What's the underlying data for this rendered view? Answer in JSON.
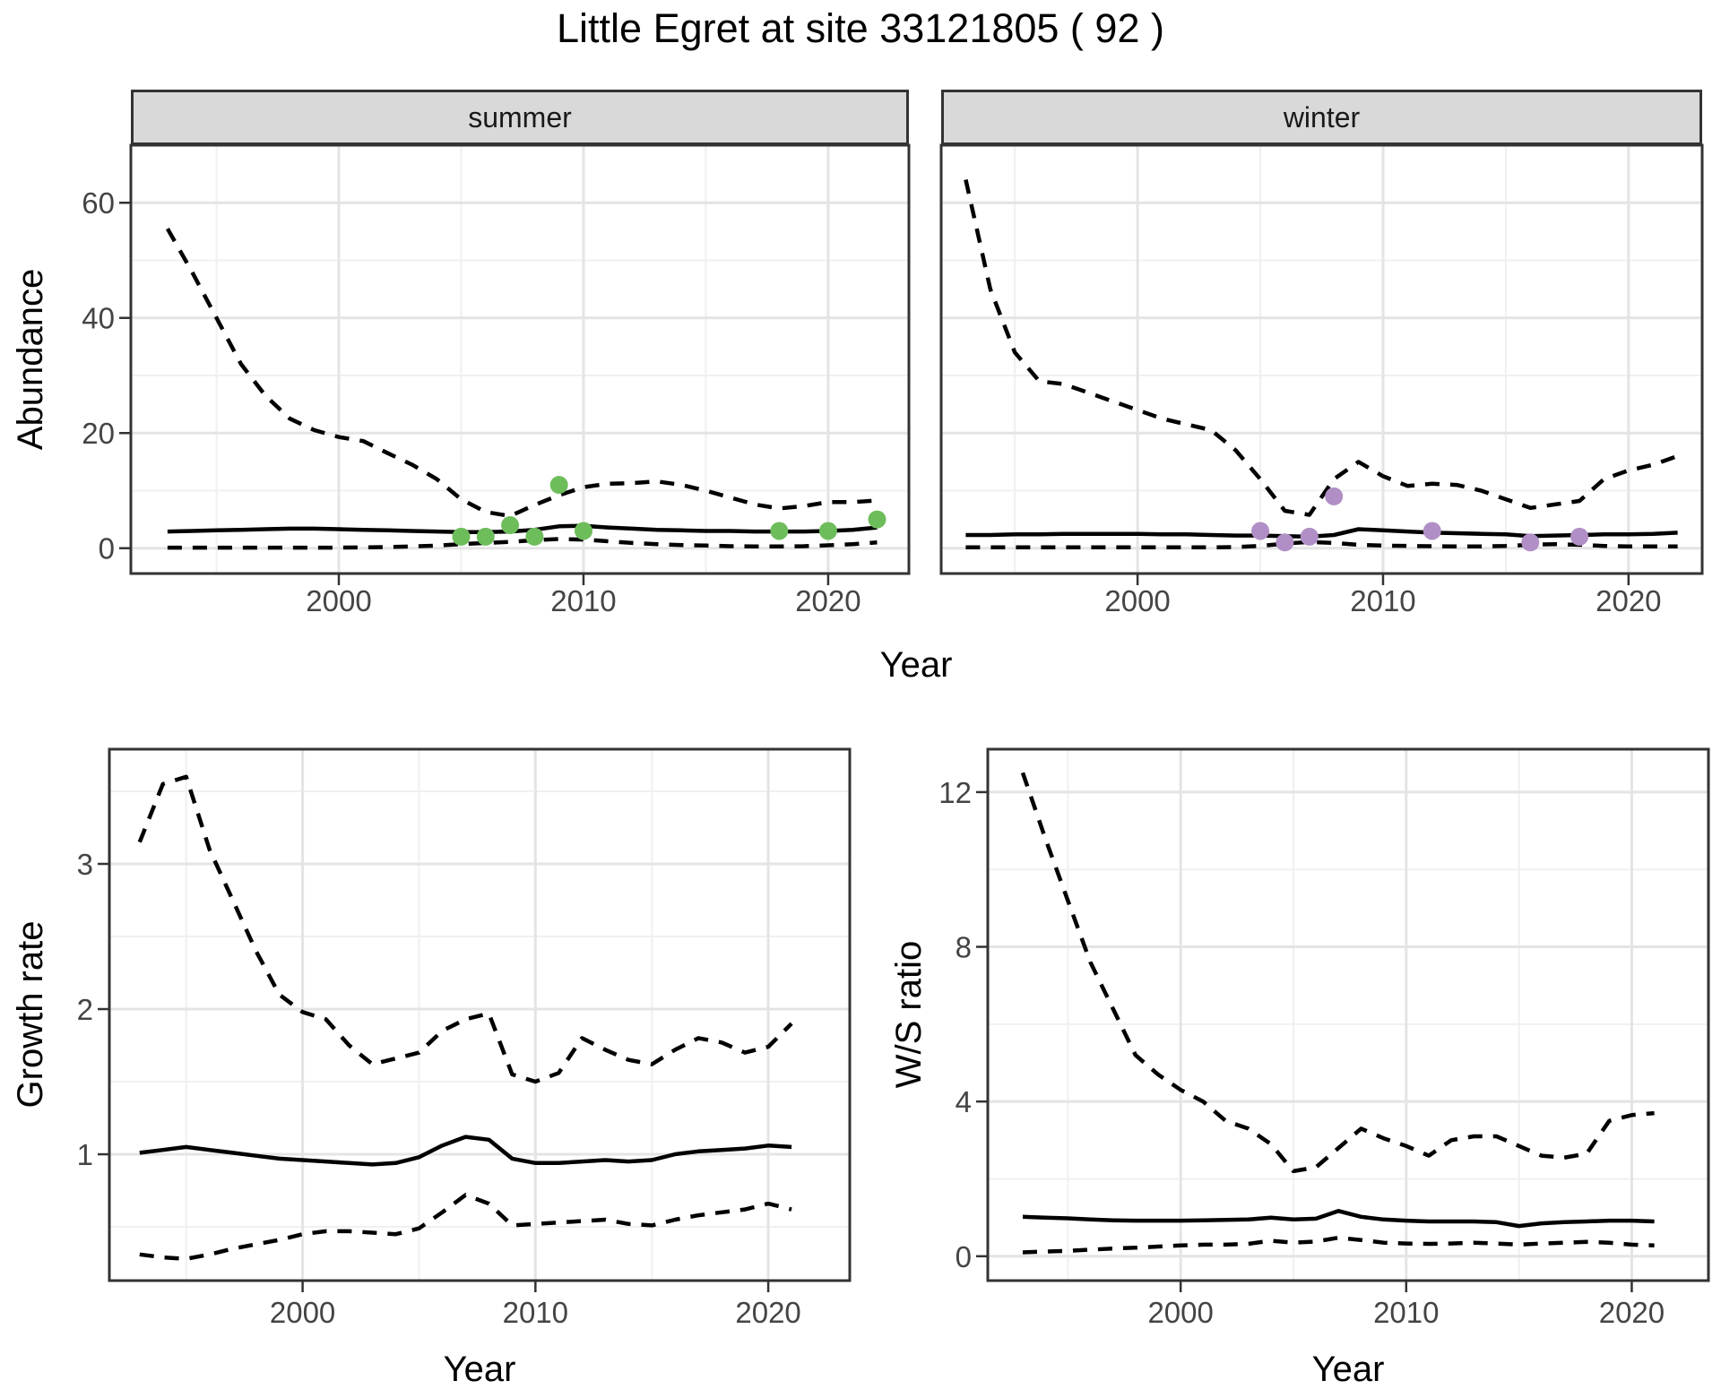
{
  "title": "Little Egret at site 33121805 ( 92 )",
  "axis_titles": {
    "year": "Year",
    "abundance": "Abundance",
    "growth_rate": "Growth rate",
    "ws_ratio": "W/S ratio"
  },
  "colors": {
    "summer_points": "#6dbd5b",
    "winter_points": "#b18fc6",
    "line": "#000000",
    "strip_fill": "#d9d9d9",
    "panel_border": "#333333",
    "grid_major": "#e4e4e4",
    "grid_minor": "#f0f0f0",
    "tick_text": "#444444"
  },
  "chart_data": [
    {
      "id": "abundance_summer",
      "type": "line",
      "facet_label": "summer",
      "xlabel": "Year",
      "ylabel": "Abundance",
      "xlim": [
        1991.5,
        2023.3
      ],
      "ylim": [
        -4.4,
        70
      ],
      "x_ticks": {
        "values": [
          2000,
          2010,
          2020
        ],
        "labels": [
          "2000",
          "2010",
          "2020"
        ]
      },
      "y_ticks": {
        "values": [
          0,
          20,
          40,
          60
        ],
        "labels": [
          "0",
          "20",
          "40",
          "60"
        ]
      },
      "x_minor": [
        1995,
        2005,
        2015
      ],
      "y_minor": [
        10,
        30,
        50
      ],
      "x": [
        1993,
        1994,
        1995,
        1996,
        1997,
        1998,
        1999,
        2000,
        2001,
        2002,
        2003,
        2004,
        2005,
        2006,
        2007,
        2008,
        2009,
        2010,
        2011,
        2012,
        2013,
        2014,
        2015,
        2016,
        2017,
        2018,
        2019,
        2020,
        2021,
        2022
      ],
      "series": [
        {
          "name": "upper-ci",
          "style": "dashed",
          "y": [
            55.5,
            48,
            40,
            32,
            26.5,
            22.5,
            20.5,
            19.3,
            18.6,
            16.5,
            14.5,
            12,
            8.5,
            6.3,
            5.6,
            7.5,
            9.2,
            10.6,
            11.2,
            11.3,
            11.6,
            11,
            10,
            8.8,
            7.6,
            6.9,
            7.3,
            8,
            8,
            8.3
          ]
        },
        {
          "name": "median",
          "style": "solid",
          "y": [
            2.9,
            3,
            3.1,
            3.2,
            3.3,
            3.4,
            3.4,
            3.3,
            3.2,
            3.1,
            3,
            2.9,
            2.8,
            2.8,
            2.9,
            3.2,
            3.8,
            3.9,
            3.6,
            3.4,
            3.2,
            3.1,
            3,
            3,
            2.9,
            2.9,
            2.9,
            3,
            3.2,
            3.6
          ]
        },
        {
          "name": "lower-ci",
          "style": "dashed",
          "y": [
            0.1,
            0.1,
            0.1,
            0.1,
            0.1,
            0.1,
            0.1,
            0.1,
            0.15,
            0.2,
            0.3,
            0.45,
            0.7,
            0.9,
            1.1,
            1.4,
            1.6,
            1.5,
            1.2,
            0.9,
            0.7,
            0.55,
            0.45,
            0.35,
            0.3,
            0.3,
            0.35,
            0.5,
            0.7,
            1
          ]
        },
        {
          "name": "observed-counts",
          "style": "points",
          "color": "#6dbd5b",
          "px": [
            2005,
            2006,
            2007,
            2008,
            2009,
            2010,
            2018,
            2020,
            2022
          ],
          "py": [
            2,
            2,
            4,
            2,
            11,
            3,
            3,
            3,
            5
          ]
        }
      ]
    },
    {
      "id": "abundance_winter",
      "type": "line",
      "facet_label": "winter",
      "xlabel": "Year",
      "ylabel": "Abundance",
      "xlim": [
        1992.0,
        2023.0
      ],
      "ylim": [
        -4.4,
        70
      ],
      "x_ticks": {
        "values": [
          2000,
          2010,
          2020
        ],
        "labels": [
          "2000",
          "2010",
          "2020"
        ]
      },
      "y_ticks": {
        "values": [
          0,
          20,
          40,
          60
        ],
        "labels": [
          "0",
          "20",
          "40",
          "60"
        ]
      },
      "x_minor": [
        1995,
        2005,
        2015
      ],
      "y_minor": [
        10,
        30,
        50
      ],
      "x": [
        1993,
        1994,
        1995,
        1996,
        1997,
        1998,
        1999,
        2000,
        2001,
        2002,
        2003,
        2004,
        2005,
        2006,
        2007,
        2008,
        2009,
        2010,
        2011,
        2012,
        2013,
        2014,
        2015,
        2016,
        2017,
        2018,
        2019,
        2020,
        2021,
        2022
      ],
      "series": [
        {
          "name": "upper-ci",
          "style": "dashed",
          "y": [
            64,
            45,
            34,
            29,
            28.5,
            27,
            25.5,
            24,
            22.5,
            21.5,
            20.5,
            17,
            12,
            6.5,
            5.8,
            12,
            15,
            12.5,
            10.8,
            11.2,
            11,
            10,
            8.5,
            7,
            7.6,
            8.2,
            12,
            13.5,
            14.5,
            16
          ]
        },
        {
          "name": "median",
          "style": "solid",
          "y": [
            2.3,
            2.3,
            2.4,
            2.4,
            2.5,
            2.5,
            2.5,
            2.5,
            2.4,
            2.4,
            2.3,
            2.2,
            2.2,
            2.1,
            2,
            2.3,
            3.3,
            3.1,
            2.9,
            2.7,
            2.6,
            2.5,
            2.4,
            2.1,
            2.2,
            2.3,
            2.4,
            2.4,
            2.5,
            2.7
          ]
        },
        {
          "name": "lower-ci",
          "style": "dashed",
          "y": [
            0.15,
            0.15,
            0.15,
            0.15,
            0.15,
            0.15,
            0.15,
            0.15,
            0.15,
            0.15,
            0.15,
            0.2,
            0.4,
            0.8,
            1.1,
            0.9,
            0.6,
            0.45,
            0.4,
            0.35,
            0.3,
            0.3,
            0.4,
            0.6,
            0.7,
            0.6,
            0.4,
            0.3,
            0.3,
            0.3
          ]
        },
        {
          "name": "observed-counts",
          "style": "points",
          "color": "#b18fc6",
          "px": [
            2005,
            2006,
            2007,
            2008,
            2012,
            2016,
            2018
          ],
          "py": [
            3,
            1,
            2,
            9,
            3,
            1,
            2
          ]
        }
      ]
    },
    {
      "id": "growth_rate",
      "type": "line",
      "facet_label": "",
      "xlabel": "Year",
      "ylabel": "Growth rate",
      "xlim": [
        1991.7,
        2023.5
      ],
      "ylim": [
        0.13,
        3.79
      ],
      "x_ticks": {
        "values": [
          2000,
          2010,
          2020
        ],
        "labels": [
          "2000",
          "2010",
          "2020"
        ]
      },
      "y_ticks": {
        "values": [
          1,
          2,
          3
        ],
        "labels": [
          "1",
          "2",
          "3"
        ]
      },
      "x_minor": [
        1995,
        2005,
        2015
      ],
      "y_minor": [
        0.5,
        1.5,
        2.5,
        3.5
      ],
      "x": [
        1993,
        1994,
        1995,
        1996,
        1997,
        1998,
        1999,
        2000,
        2001,
        2002,
        2003,
        2004,
        2005,
        2006,
        2007,
        2008,
        2009,
        2010,
        2011,
        2012,
        2013,
        2014,
        2015,
        2016,
        2017,
        2018,
        2019,
        2020,
        2021
      ],
      "series": [
        {
          "name": "upper-ci",
          "style": "dashed",
          "y": [
            3.15,
            3.55,
            3.6,
            3.1,
            2.75,
            2.4,
            2.1,
            1.98,
            1.93,
            1.75,
            1.62,
            1.66,
            1.7,
            1.85,
            1.93,
            1.97,
            1.55,
            1.5,
            1.56,
            1.8,
            1.72,
            1.65,
            1.62,
            1.72,
            1.8,
            1.77,
            1.7,
            1.74,
            1.9
          ]
        },
        {
          "name": "median",
          "style": "solid",
          "y": [
            1.01,
            1.03,
            1.05,
            1.03,
            1.01,
            0.99,
            0.97,
            0.96,
            0.95,
            0.94,
            0.93,
            0.94,
            0.98,
            1.06,
            1.12,
            1.1,
            0.97,
            0.94,
            0.94,
            0.95,
            0.96,
            0.95,
            0.96,
            1,
            1.02,
            1.03,
            1.04,
            1.06,
            1.05
          ]
        },
        {
          "name": "lower-ci",
          "style": "dashed",
          "y": [
            0.31,
            0.29,
            0.28,
            0.31,
            0.35,
            0.38,
            0.41,
            0.45,
            0.47,
            0.47,
            0.46,
            0.45,
            0.49,
            0.6,
            0.72,
            0.66,
            0.51,
            0.52,
            0.53,
            0.54,
            0.55,
            0.52,
            0.51,
            0.55,
            0.58,
            0.6,
            0.62,
            0.66,
            0.62
          ]
        }
      ]
    },
    {
      "id": "ws_ratio",
      "type": "line",
      "facet_label": "",
      "xlabel": "Year",
      "ylabel": "W/S ratio",
      "xlim": [
        1991.45,
        2023.4
      ],
      "ylim": [
        -0.63,
        13.11
      ],
      "x_ticks": {
        "values": [
          2000,
          2010,
          2020
        ],
        "labels": [
          "2000",
          "2010",
          "2020"
        ]
      },
      "y_ticks": {
        "values": [
          0,
          4,
          8,
          12
        ],
        "labels": [
          "0",
          "4",
          "8",
          "12"
        ]
      },
      "x_minor": [
        1995,
        2005,
        2015
      ],
      "y_minor": [
        2,
        6,
        10
      ],
      "x": [
        1993,
        1994,
        1995,
        1996,
        1997,
        1998,
        1999,
        2000,
        2001,
        2002,
        2003,
        2004,
        2005,
        2006,
        2007,
        2008,
        2009,
        2010,
        2011,
        2012,
        2013,
        2014,
        2015,
        2016,
        2017,
        2018,
        2019,
        2020,
        2021
      ],
      "series": [
        {
          "name": "upper-ci",
          "style": "dashed",
          "y": [
            12.5,
            10.8,
            9.2,
            7.6,
            6.4,
            5.2,
            4.7,
            4.3,
            4,
            3.5,
            3.3,
            2.9,
            2.2,
            2.3,
            2.8,
            3.3,
            3.05,
            2.85,
            2.6,
            3,
            3.1,
            3.1,
            2.85,
            2.6,
            2.55,
            2.65,
            3.5,
            3.65,
            3.7
          ]
        },
        {
          "name": "median",
          "style": "solid",
          "y": [
            1.02,
            1,
            0.98,
            0.95,
            0.93,
            0.92,
            0.92,
            0.92,
            0.93,
            0.94,
            0.95,
            1,
            0.95,
            0.97,
            1.17,
            1.02,
            0.95,
            0.92,
            0.9,
            0.9,
            0.9,
            0.88,
            0.78,
            0.85,
            0.88,
            0.9,
            0.92,
            0.92,
            0.9
          ]
        },
        {
          "name": "lower-ci",
          "style": "dashed",
          "y": [
            0.1,
            0.12,
            0.14,
            0.17,
            0.2,
            0.22,
            0.25,
            0.28,
            0.3,
            0.3,
            0.32,
            0.4,
            0.35,
            0.38,
            0.48,
            0.42,
            0.35,
            0.33,
            0.32,
            0.33,
            0.35,
            0.33,
            0.3,
            0.33,
            0.35,
            0.37,
            0.35,
            0.3,
            0.28
          ]
        }
      ]
    }
  ]
}
